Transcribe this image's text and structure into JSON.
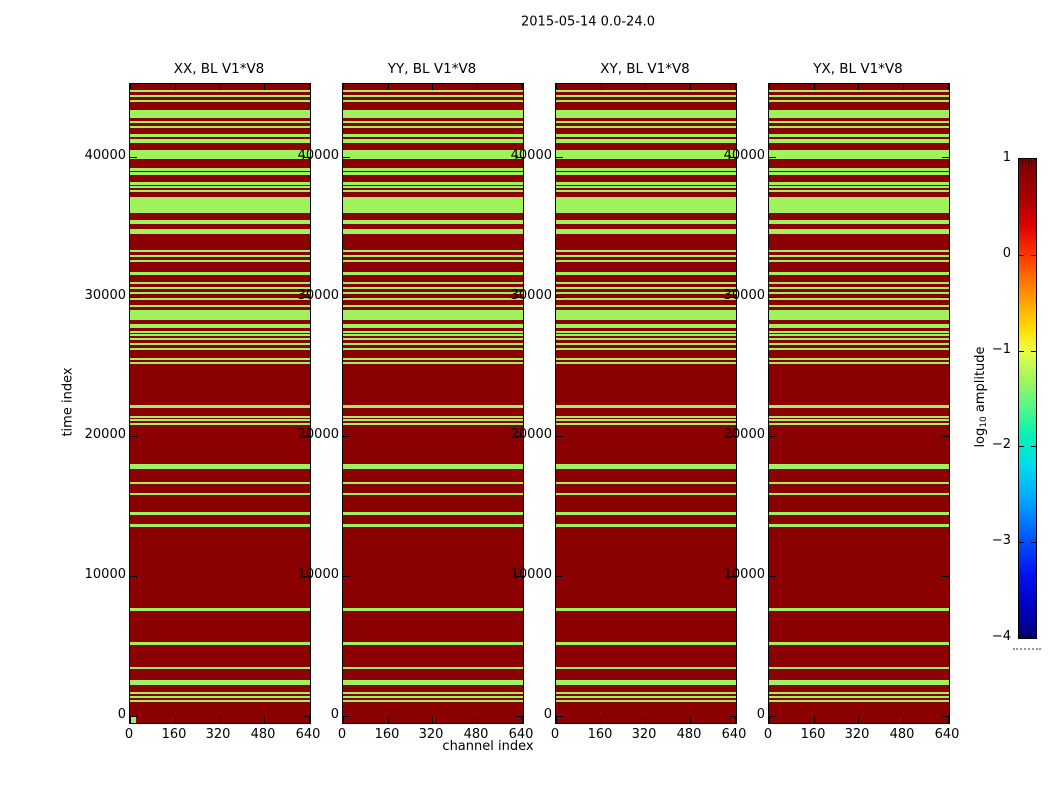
{
  "chart_data": {
    "type": "heatmap",
    "title": "2015-05-14 0.0-24.0",
    "xlabel": "channel index",
    "ylabel": "time index",
    "panels": [
      {
        "title": "XX, BL V1*V8"
      },
      {
        "title": "YY, BL V1*V8"
      },
      {
        "title": "XY, BL V1*V8"
      },
      {
        "title": "YX, BL V1*V8"
      }
    ],
    "x_axis": {
      "ticks": [
        0,
        160,
        320,
        480,
        640
      ],
      "range": [
        0,
        645
      ]
    },
    "y_axis": {
      "ticks": [
        0,
        10000,
        20000,
        30000,
        40000
      ],
      "range": [
        -500,
        45200
      ]
    },
    "colors": {
      "high_amplitude": "#8b0000",
      "low_amplitude": "#9ff25b"
    },
    "colorbar": {
      "label_prefix": "log",
      "label_subscript": "10",
      "label_suffix": " amplitude",
      "ticks": [
        1,
        0,
        -1,
        -2,
        -3,
        -4
      ],
      "range": [
        -4,
        1
      ],
      "colormap": "jet",
      "gradient": [
        {
          "p": 0,
          "c": "#7a0000"
        },
        {
          "p": 8,
          "c": "#a80000"
        },
        {
          "p": 14,
          "c": "#e00000"
        },
        {
          "p": 20,
          "c": "#ff3700"
        },
        {
          "p": 28,
          "c": "#ff9100"
        },
        {
          "p": 35,
          "c": "#ffd900"
        },
        {
          "p": 40,
          "c": "#eaff45"
        },
        {
          "p": 46,
          "c": "#a2f55c"
        },
        {
          "p": 52,
          "c": "#4ef98a"
        },
        {
          "p": 58,
          "c": "#00f2bb"
        },
        {
          "p": 64,
          "c": "#00dcea"
        },
        {
          "p": 71,
          "c": "#00a8ff"
        },
        {
          "p": 79,
          "c": "#0058ff"
        },
        {
          "p": 87,
          "c": "#0010f0"
        },
        {
          "p": 94,
          "c": "#0000bc"
        },
        {
          "p": 100,
          "c": "#00007e"
        }
      ]
    },
    "low_amplitude_time_intervals": [
      [
        44640,
        44790
      ],
      [
        44290,
        44430
      ],
      [
        43930,
        44070
      ],
      [
        42790,
        43360
      ],
      [
        42430,
        42570
      ],
      [
        42070,
        42210
      ],
      [
        41430,
        41640
      ],
      [
        41000,
        41290
      ],
      [
        39860,
        40500
      ],
      [
        39000,
        39210
      ],
      [
        38710,
        38930
      ],
      [
        38000,
        38210
      ],
      [
        37790,
        37930
      ],
      [
        37500,
        37640
      ],
      [
        36000,
        37140
      ],
      [
        35210,
        35500
      ],
      [
        34500,
        34860
      ],
      [
        33210,
        33360
      ],
      [
        32860,
        33000
      ],
      [
        32500,
        32640
      ],
      [
        31570,
        31790
      ],
      [
        30930,
        31070
      ],
      [
        30570,
        30710
      ],
      [
        30210,
        30360
      ],
      [
        29710,
        29860
      ],
      [
        29290,
        29430
      ],
      [
        28360,
        29070
      ],
      [
        27930,
        28070
      ],
      [
        27710,
        27860
      ],
      [
        27430,
        27570
      ],
      [
        27140,
        27290
      ],
      [
        26860,
        27000
      ],
      [
        26570,
        26710
      ],
      [
        26140,
        26290
      ],
      [
        25430,
        25570
      ],
      [
        25140,
        25290
      ],
      [
        22000,
        22210
      ],
      [
        21290,
        21430
      ],
      [
        21070,
        21210
      ],
      [
        20790,
        20930
      ],
      [
        17640,
        18000
      ],
      [
        16570,
        16710
      ],
      [
        15790,
        15930
      ],
      [
        14360,
        14570
      ],
      [
        13500,
        13710
      ],
      [
        7500,
        7710
      ],
      [
        5070,
        5290
      ],
      [
        3360,
        3500
      ],
      [
        2210,
        2570
      ],
      [
        1570,
        1710
      ],
      [
        1290,
        1430
      ],
      [
        1000,
        1140
      ]
    ],
    "corner_low_patch": {
      "panel": 0,
      "channels": [
        0,
        22
      ],
      "times": [
        -500,
        0
      ]
    }
  }
}
